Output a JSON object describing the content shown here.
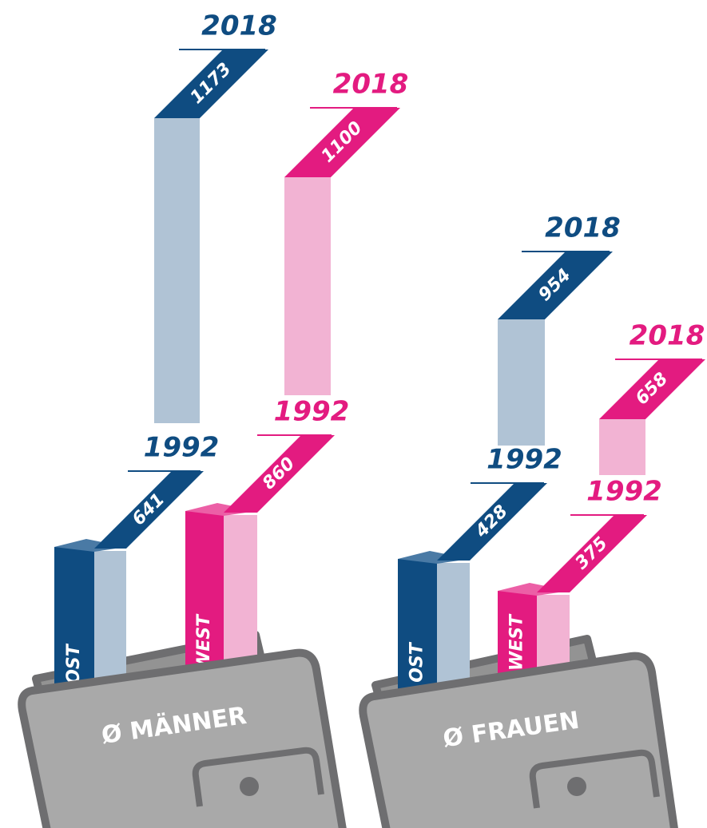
{
  "groups": [
    {
      "label": "Ø MÄNNER",
      "bars": [
        {
          "region": "OST",
          "y1992": {
            "year": "1992",
            "value": 641
          },
          "y2018": {
            "year": "2018",
            "value": 1173
          }
        },
        {
          "region": "WEST",
          "y1992": {
            "year": "1992",
            "value": 860
          },
          "y2018": {
            "year": "2018",
            "value": 1100
          }
        }
      ]
    },
    {
      "label": "Ø FRAUEN",
      "bars": [
        {
          "region": "OST",
          "y1992": {
            "year": "1992",
            "value": 428
          },
          "y2018": {
            "year": "2018",
            "value": 954
          }
        },
        {
          "region": "WEST",
          "y1992": {
            "year": "1992",
            "value": 375
          },
          "y2018": {
            "year": "2018",
            "value": 658
          }
        }
      ]
    }
  ]
}
